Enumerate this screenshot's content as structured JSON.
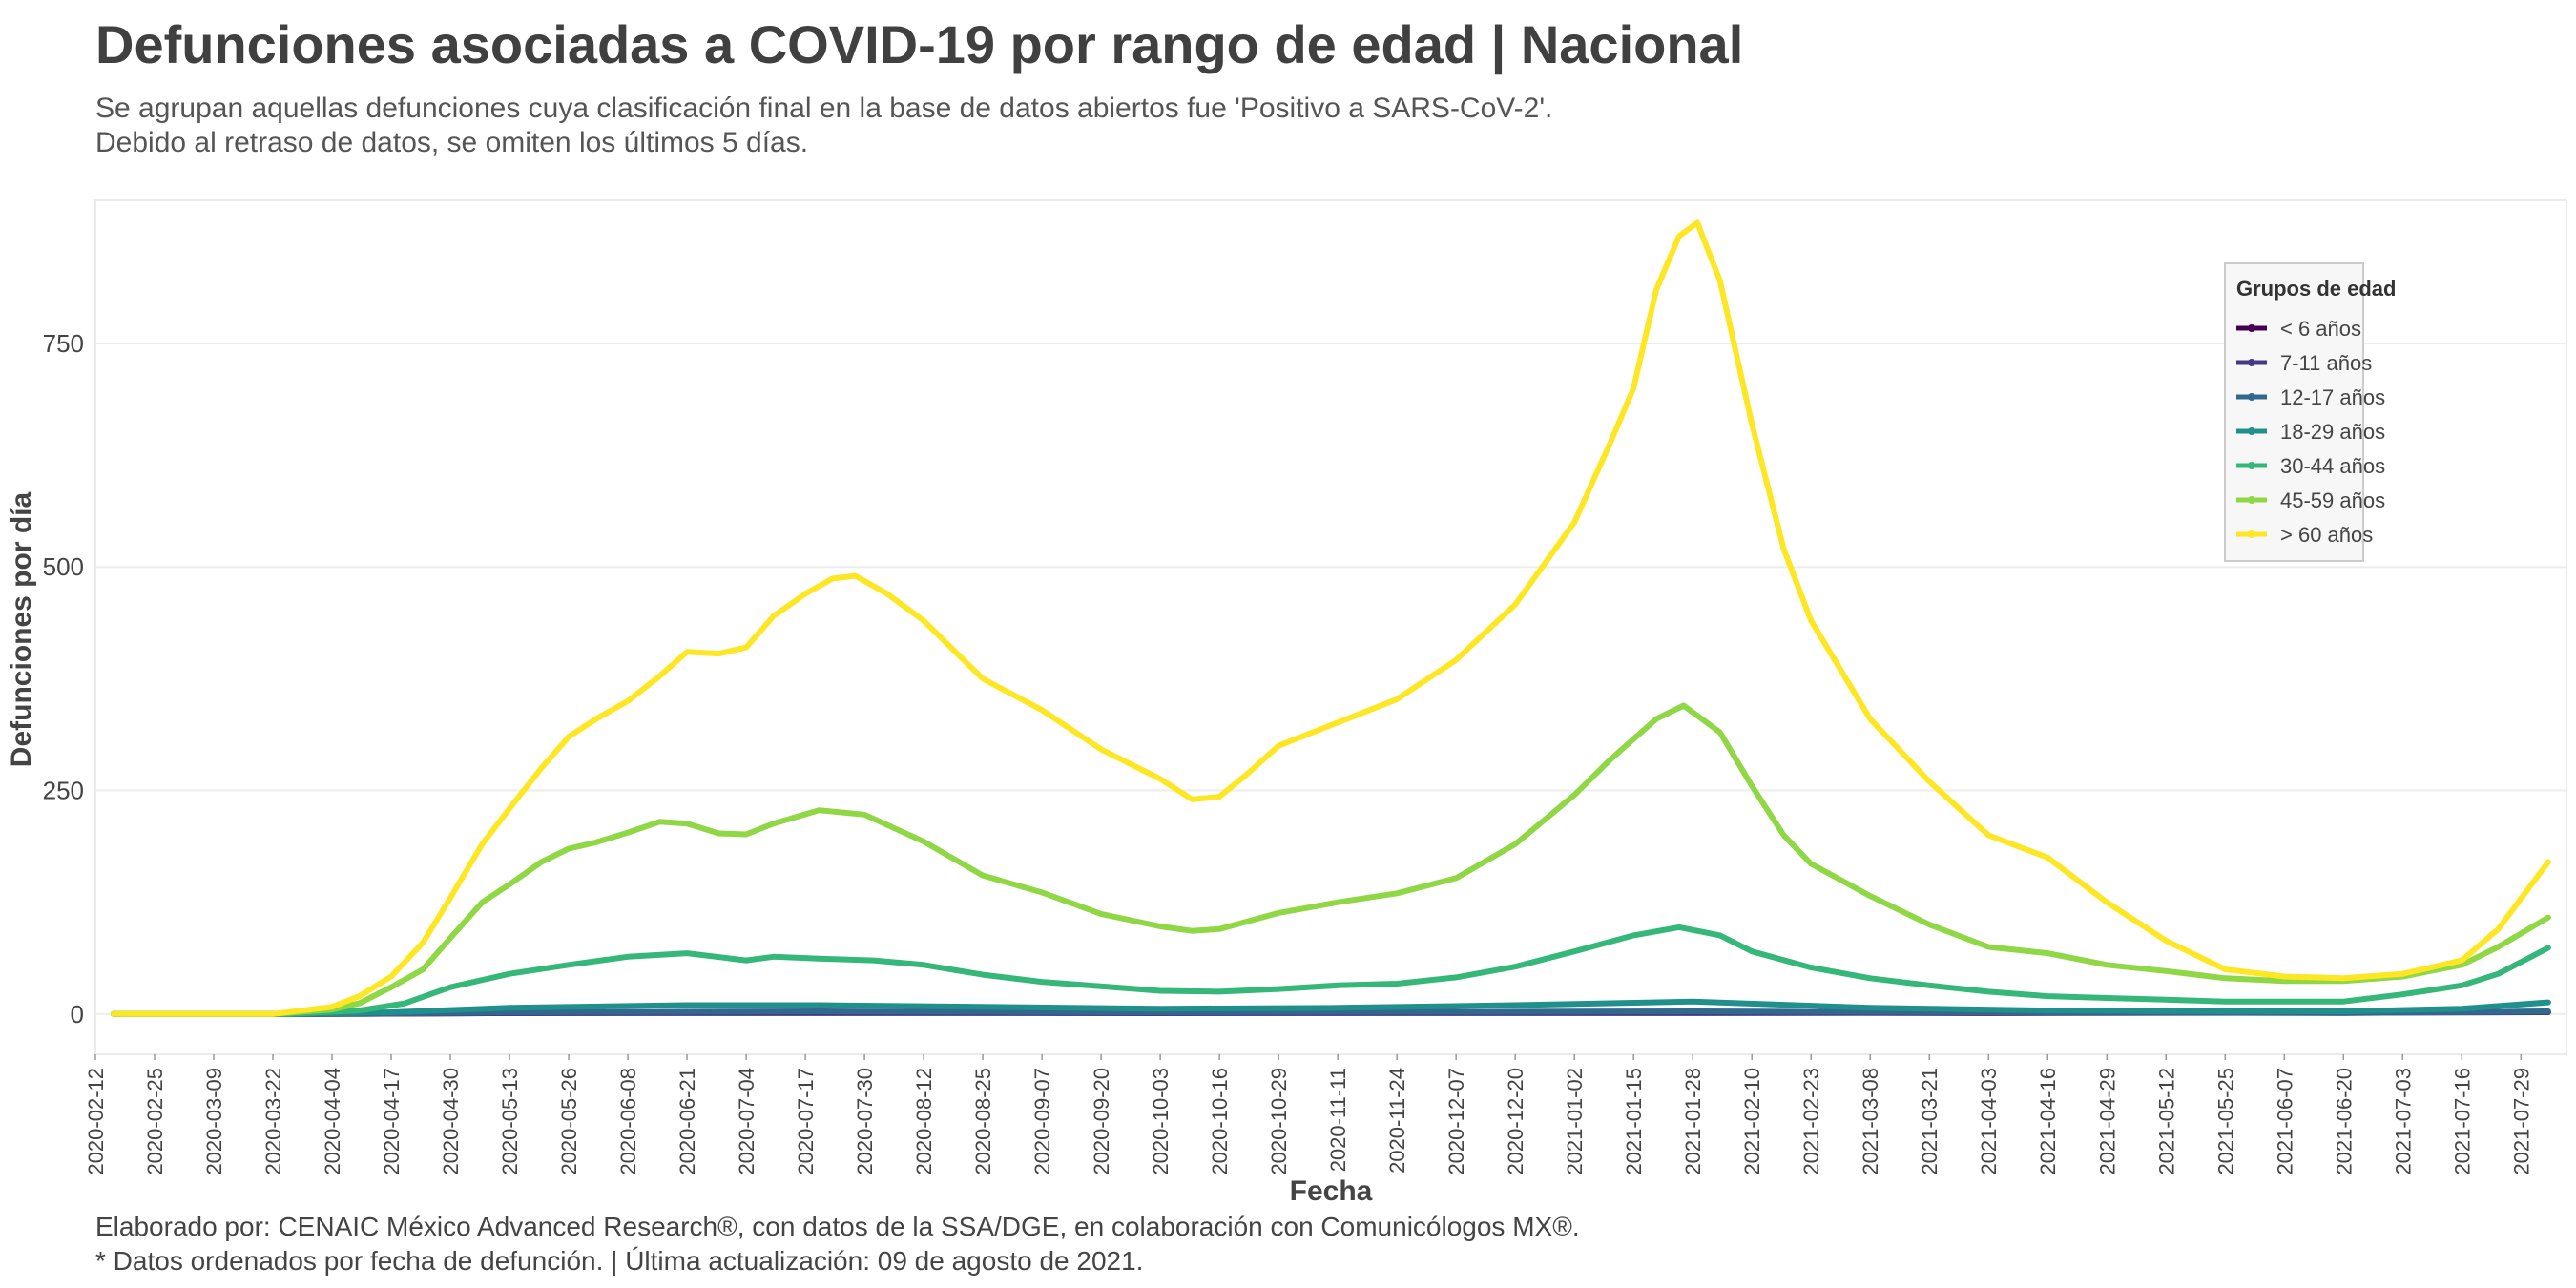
{
  "header": {
    "title": "Defunciones asociadas a COVID-19 por rango de edad | Nacional",
    "subtitle_line1": "Se agrupan aquellas defunciones cuya clasificación final en la base de datos abiertos fue 'Positivo a SARS-CoV-2'.",
    "subtitle_line2": "Debido al retraso de datos, se omiten los últimos 5 días."
  },
  "caption": {
    "line1": "Elaborado por: CENAIC México Advanced Research®, con datos de la SSA/DGE, en colaboración con Comunicólogos MX®.",
    "line2": "* Datos ordenados por fecha de defunción. | Última actualización: 09 de agosto de 2021."
  },
  "chart_data": {
    "type": "line",
    "title": "Defunciones asociadas a COVID-19 por rango de edad | Nacional",
    "xlabel": "Fecha",
    "ylabel": "Defunciones por día",
    "ylim": [
      -45,
      910
    ],
    "yticks": [
      0,
      250,
      500,
      750
    ],
    "xticks": [
      "2020-02-12",
      "2020-02-25",
      "2020-03-09",
      "2020-03-22",
      "2020-04-04",
      "2020-04-17",
      "2020-04-30",
      "2020-05-13",
      "2020-05-26",
      "2020-06-08",
      "2020-06-21",
      "2020-07-04",
      "2020-07-17",
      "2020-07-30",
      "2020-08-12",
      "2020-08-25",
      "2020-09-07",
      "2020-09-20",
      "2020-10-03",
      "2020-10-16",
      "2020-10-29",
      "2020-11-11",
      "2020-11-24",
      "2020-12-07",
      "2020-12-20",
      "2021-01-02",
      "2021-01-15",
      "2021-01-28",
      "2021-02-10",
      "2021-02-23",
      "2021-03-08",
      "2021-03-21",
      "2021-04-03",
      "2021-04-16",
      "2021-04-29",
      "2021-05-12",
      "2021-05-25",
      "2021-06-07",
      "2021-06-20",
      "2021-07-03",
      "2021-07-16",
      "2021-07-29"
    ],
    "x_start": "2020-02-16",
    "x_end": "2021-08-04",
    "x_axis_start": "2020-02-12",
    "x_axis_end": "2021-08-08",
    "legend": {
      "title": "Grupos de edad",
      "placement": "top-right"
    },
    "series": [
      {
        "name": "< 6 años",
        "color": "#440154",
        "points": [
          [
            "2020-02-16",
            0
          ],
          [
            "2020-04-01",
            0
          ],
          [
            "2020-05-13",
            1
          ],
          [
            "2020-07-20",
            2
          ],
          [
            "2020-10-01",
            1
          ],
          [
            "2021-01-28",
            2
          ],
          [
            "2021-04-01",
            1
          ],
          [
            "2021-08-04",
            2
          ]
        ]
      },
      {
        "name": "7-11 años",
        "color": "#443A83",
        "points": [
          [
            "2020-02-16",
            0
          ],
          [
            "2020-04-01",
            0
          ],
          [
            "2020-05-13",
            1
          ],
          [
            "2020-07-20",
            1
          ],
          [
            "2020-10-01",
            1
          ],
          [
            "2021-01-28",
            1
          ],
          [
            "2021-08-04",
            2
          ]
        ]
      },
      {
        "name": "12-17 años",
        "color": "#31688E",
        "points": [
          [
            "2020-02-16",
            0
          ],
          [
            "2020-04-01",
            0
          ],
          [
            "2020-05-13",
            2
          ],
          [
            "2020-07-20",
            3
          ],
          [
            "2020-10-01",
            2
          ],
          [
            "2021-01-28",
            3
          ],
          [
            "2021-04-01",
            2
          ],
          [
            "2021-06-20",
            1
          ],
          [
            "2021-08-04",
            3
          ]
        ]
      },
      {
        "name": "18-29 años",
        "color": "#21908C",
        "points": [
          [
            "2020-02-16",
            0
          ],
          [
            "2020-03-25",
            0
          ],
          [
            "2020-04-17",
            2
          ],
          [
            "2020-05-13",
            7
          ],
          [
            "2020-06-21",
            10
          ],
          [
            "2020-07-20",
            10
          ],
          [
            "2020-08-25",
            8
          ],
          [
            "2020-10-03",
            6
          ],
          [
            "2020-11-11",
            7
          ],
          [
            "2020-12-20",
            10
          ],
          [
            "2021-01-28",
            14
          ],
          [
            "2021-03-08",
            7
          ],
          [
            "2021-04-16",
            4
          ],
          [
            "2021-05-25",
            3
          ],
          [
            "2021-06-20",
            3
          ],
          [
            "2021-07-16",
            6
          ],
          [
            "2021-08-04",
            13
          ]
        ]
      },
      {
        "name": "30-44 años",
        "color": "#35B779",
        "points": [
          [
            "2020-02-16",
            0
          ],
          [
            "2020-03-25",
            0
          ],
          [
            "2020-04-10",
            4
          ],
          [
            "2020-04-20",
            12
          ],
          [
            "2020-04-30",
            30
          ],
          [
            "2020-05-13",
            45
          ],
          [
            "2020-05-26",
            55
          ],
          [
            "2020-06-08",
            64
          ],
          [
            "2020-06-21",
            68
          ],
          [
            "2020-07-04",
            60
          ],
          [
            "2020-07-10",
            64
          ],
          [
            "2020-07-20",
            62
          ],
          [
            "2020-08-01",
            60
          ],
          [
            "2020-08-12",
            55
          ],
          [
            "2020-08-25",
            44
          ],
          [
            "2020-09-07",
            36
          ],
          [
            "2020-09-20",
            31
          ],
          [
            "2020-10-03",
            26
          ],
          [
            "2020-10-16",
            25
          ],
          [
            "2020-10-29",
            28
          ],
          [
            "2020-11-11",
            32
          ],
          [
            "2020-11-24",
            34
          ],
          [
            "2020-12-07",
            41
          ],
          [
            "2020-12-20",
            53
          ],
          [
            "2021-01-02",
            70
          ],
          [
            "2021-01-15",
            88
          ],
          [
            "2021-01-25",
            97
          ],
          [
            "2021-02-03",
            88
          ],
          [
            "2021-02-10",
            70
          ],
          [
            "2021-02-23",
            52
          ],
          [
            "2021-03-08",
            40
          ],
          [
            "2021-03-21",
            32
          ],
          [
            "2021-04-03",
            25
          ],
          [
            "2021-04-16",
            20
          ],
          [
            "2021-04-29",
            18
          ],
          [
            "2021-05-12",
            16
          ],
          [
            "2021-05-25",
            14
          ],
          [
            "2021-06-07",
            14
          ],
          [
            "2021-06-20",
            14
          ],
          [
            "2021-07-03",
            22
          ],
          [
            "2021-07-16",
            32
          ],
          [
            "2021-07-24",
            45
          ],
          [
            "2021-08-04",
            74
          ]
        ]
      },
      {
        "name": "45-59 años",
        "color": "#8FD744",
        "points": [
          [
            "2020-02-16",
            0
          ],
          [
            "2020-03-22",
            0
          ],
          [
            "2020-04-04",
            5
          ],
          [
            "2020-04-10",
            12
          ],
          [
            "2020-04-17",
            30
          ],
          [
            "2020-04-24",
            50
          ],
          [
            "2020-04-30",
            85
          ],
          [
            "2020-05-07",
            125
          ],
          [
            "2020-05-13",
            145
          ],
          [
            "2020-05-20",
            170
          ],
          [
            "2020-05-26",
            185
          ],
          [
            "2020-06-01",
            192
          ],
          [
            "2020-06-08",
            203
          ],
          [
            "2020-06-15",
            215
          ],
          [
            "2020-06-21",
            213
          ],
          [
            "2020-06-28",
            202
          ],
          [
            "2020-07-04",
            201
          ],
          [
            "2020-07-10",
            213
          ],
          [
            "2020-07-20",
            228
          ],
          [
            "2020-07-30",
            223
          ],
          [
            "2020-08-12",
            193
          ],
          [
            "2020-08-25",
            155
          ],
          [
            "2020-09-07",
            136
          ],
          [
            "2020-09-20",
            112
          ],
          [
            "2020-10-03",
            98
          ],
          [
            "2020-10-10",
            93
          ],
          [
            "2020-10-16",
            95
          ],
          [
            "2020-10-29",
            113
          ],
          [
            "2020-11-11",
            125
          ],
          [
            "2020-11-24",
            135
          ],
          [
            "2020-12-07",
            152
          ],
          [
            "2020-12-20",
            190
          ],
          [
            "2021-01-02",
            245
          ],
          [
            "2021-01-10",
            285
          ],
          [
            "2021-01-20",
            330
          ],
          [
            "2021-01-26",
            345
          ],
          [
            "2021-02-03",
            315
          ],
          [
            "2021-02-10",
            255
          ],
          [
            "2021-02-17",
            200
          ],
          [
            "2021-02-23",
            168
          ],
          [
            "2021-03-08",
            132
          ],
          [
            "2021-03-21",
            100
          ],
          [
            "2021-04-03",
            75
          ],
          [
            "2021-04-16",
            68
          ],
          [
            "2021-04-29",
            55
          ],
          [
            "2021-05-12",
            48
          ],
          [
            "2021-05-25",
            40
          ],
          [
            "2021-06-07",
            37
          ],
          [
            "2021-06-20",
            37
          ],
          [
            "2021-07-03",
            42
          ],
          [
            "2021-07-16",
            55
          ],
          [
            "2021-07-24",
            75
          ],
          [
            "2021-08-04",
            108
          ]
        ]
      },
      {
        "name": "> 60 años",
        "color": "#FDE725",
        "points": [
          [
            "2020-02-16",
            0
          ],
          [
            "2020-03-22",
            0
          ],
          [
            "2020-04-04",
            8
          ],
          [
            "2020-04-10",
            20
          ],
          [
            "2020-04-17",
            42
          ],
          [
            "2020-04-24",
            80
          ],
          [
            "2020-04-30",
            130
          ],
          [
            "2020-05-07",
            190
          ],
          [
            "2020-05-13",
            230
          ],
          [
            "2020-05-20",
            275
          ],
          [
            "2020-05-26",
            310
          ],
          [
            "2020-06-01",
            330
          ],
          [
            "2020-06-08",
            350
          ],
          [
            "2020-06-15",
            378
          ],
          [
            "2020-06-21",
            405
          ],
          [
            "2020-06-28",
            403
          ],
          [
            "2020-07-04",
            410
          ],
          [
            "2020-07-10",
            445
          ],
          [
            "2020-07-17",
            470
          ],
          [
            "2020-07-23",
            487
          ],
          [
            "2020-07-28",
            490
          ],
          [
            "2020-08-04",
            470
          ],
          [
            "2020-08-12",
            440
          ],
          [
            "2020-08-25",
            375
          ],
          [
            "2020-09-07",
            340
          ],
          [
            "2020-09-20",
            296
          ],
          [
            "2020-10-03",
            263
          ],
          [
            "2020-10-10",
            240
          ],
          [
            "2020-10-16",
            243
          ],
          [
            "2020-10-22",
            268
          ],
          [
            "2020-10-29",
            300
          ],
          [
            "2020-11-11",
            326
          ],
          [
            "2020-11-24",
            352
          ],
          [
            "2020-12-07",
            396
          ],
          [
            "2020-12-20",
            458
          ],
          [
            "2021-01-02",
            550
          ],
          [
            "2021-01-10",
            640
          ],
          [
            "2021-01-15",
            700
          ],
          [
            "2021-01-20",
            810
          ],
          [
            "2021-01-25",
            870
          ],
          [
            "2021-01-29",
            885
          ],
          [
            "2021-02-03",
            820
          ],
          [
            "2021-02-10",
            660
          ],
          [
            "2021-02-17",
            520
          ],
          [
            "2021-02-23",
            440
          ],
          [
            "2021-03-08",
            330
          ],
          [
            "2021-03-21",
            260
          ],
          [
            "2021-04-03",
            200
          ],
          [
            "2021-04-16",
            175
          ],
          [
            "2021-04-29",
            125
          ],
          [
            "2021-05-12",
            82
          ],
          [
            "2021-05-25",
            50
          ],
          [
            "2021-06-07",
            42
          ],
          [
            "2021-06-20",
            40
          ],
          [
            "2021-07-03",
            45
          ],
          [
            "2021-07-16",
            60
          ],
          [
            "2021-07-24",
            95
          ],
          [
            "2021-08-04",
            170
          ]
        ]
      }
    ]
  }
}
